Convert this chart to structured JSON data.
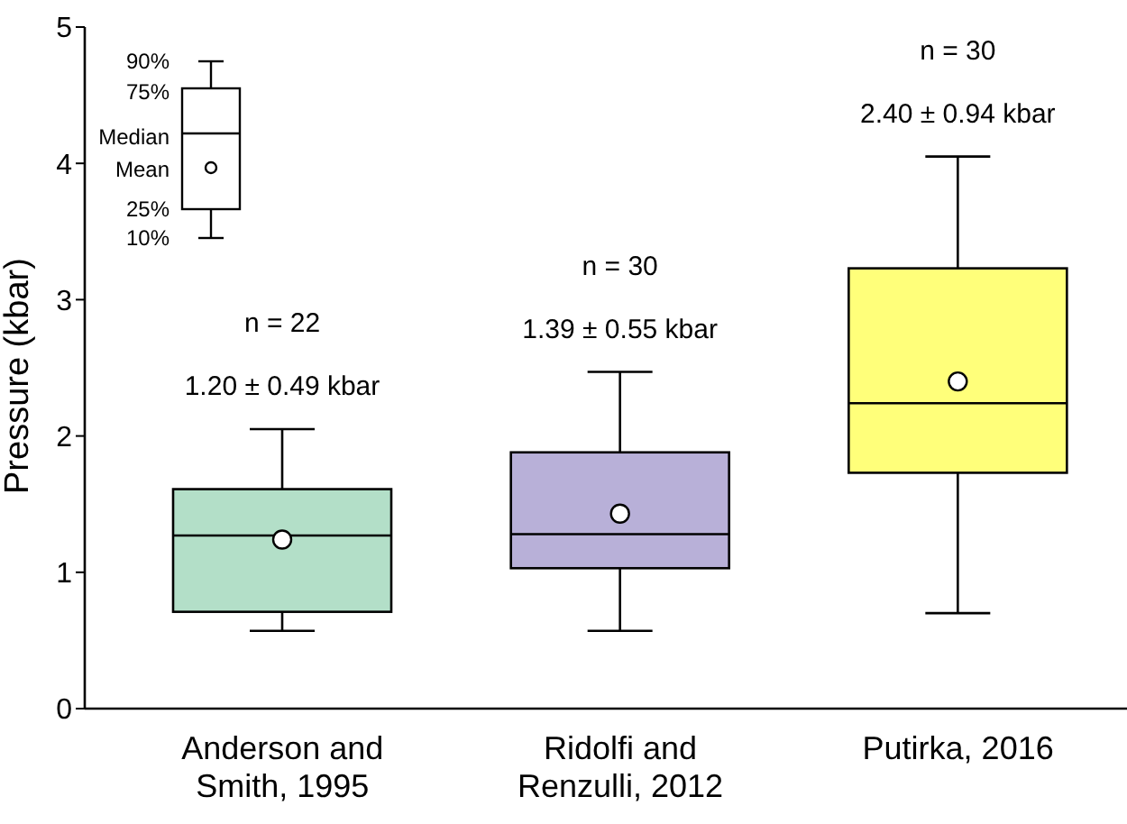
{
  "chart_data": {
    "type": "box",
    "ylabel": "Pressure (kbar)",
    "categories": [
      "Anderson and Smith, 1995",
      "Ridolfi and Renzulli, 2012",
      "Putirka, 2016"
    ],
    "colors": [
      "#b3dfc8",
      "#b8b0d8",
      "#ffff7a"
    ],
    "boxes": [
      {
        "low": 0.57,
        "q1": 0.71,
        "median": 1.27,
        "q3": 1.61,
        "high": 2.05,
        "mean": 1.24
      },
      {
        "low": 0.57,
        "q1": 1.03,
        "median": 1.28,
        "q3": 1.88,
        "high": 2.47,
        "mean": 1.43
      },
      {
        "low": 0.7,
        "q1": 1.73,
        "median": 2.24,
        "q3": 3.23,
        "high": 4.05,
        "mean": 2.4
      }
    ],
    "ylim": [
      0,
      5
    ],
    "yticks": [
      0,
      1,
      2,
      3,
      4,
      5
    ],
    "grid": false,
    "legend": false,
    "annotations": [
      "90%",
      "75%",
      "Median",
      "Mean",
      "25%",
      "10%",
      "n = 22",
      "1.20 ± 0.49 kbar",
      "n = 30",
      "1.39 ± 0.55 kbar",
      "n = 30",
      "2.40 ± 0.94 kbar"
    ]
  }
}
